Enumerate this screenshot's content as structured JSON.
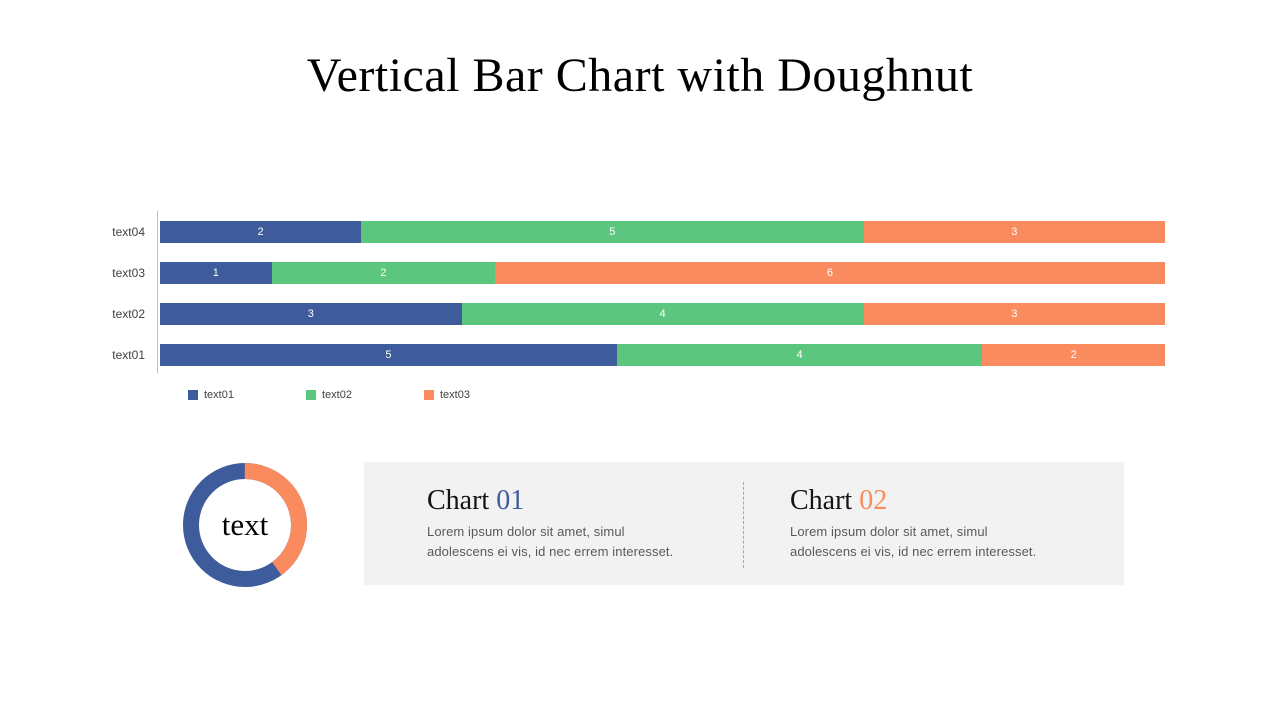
{
  "title": "Vertical Bar Chart with Doughnut",
  "colors": {
    "series_blue": "#3E5B9B",
    "series_green": "#5DC67E",
    "series_orange": "#F98B5F",
    "panel_background": "#F2F2F2",
    "category_label": "#404040",
    "body_text": "#595959"
  },
  "chart_data": [
    {
      "type": "bar",
      "variant": "horizontal-stacked-100pct",
      "title": "",
      "xlabel": "",
      "ylabel": "",
      "grid": false,
      "legend_position": "bottom",
      "series": [
        {
          "name": "text01",
          "color": "#3E5B9B"
        },
        {
          "name": "text02",
          "color": "#5DC67E"
        },
        {
          "name": "text03",
          "color": "#F98B5F"
        }
      ],
      "rows": [
        {
          "category": "text04",
          "values": [
            2,
            5,
            3
          ]
        },
        {
          "category": "text03",
          "values": [
            1,
            2,
            6
          ]
        },
        {
          "category": "text02",
          "values": [
            3,
            4,
            3
          ]
        },
        {
          "category": "text01",
          "values": [
            5,
            4,
            2
          ]
        }
      ],
      "value_label_color": "#FFFFFF"
    },
    {
      "type": "pie",
      "variant": "doughnut",
      "center_label": "text",
      "start_angle": "top, clockwise",
      "slices": [
        {
          "name": "slice-orange",
          "value": 40,
          "color": "#F98B5F"
        },
        {
          "name": "slice-blue",
          "value": 60,
          "color": "#3E5B9B"
        }
      ]
    }
  ],
  "cards": [
    {
      "title_word": "Chart",
      "title_number": "01",
      "number_color": "#3E5B9B",
      "body_lines": [
        "Lorem ipsum dolor sit amet, simul",
        "adolescens ei vis, id nec errem  interesset."
      ]
    },
    {
      "title_word": "Chart",
      "title_number": "02",
      "number_color": "#F98B5F",
      "body_lines": [
        "Lorem ipsum dolor sit amet, simul",
        "adolescens ei vis, id nec errem  interesset."
      ]
    }
  ]
}
